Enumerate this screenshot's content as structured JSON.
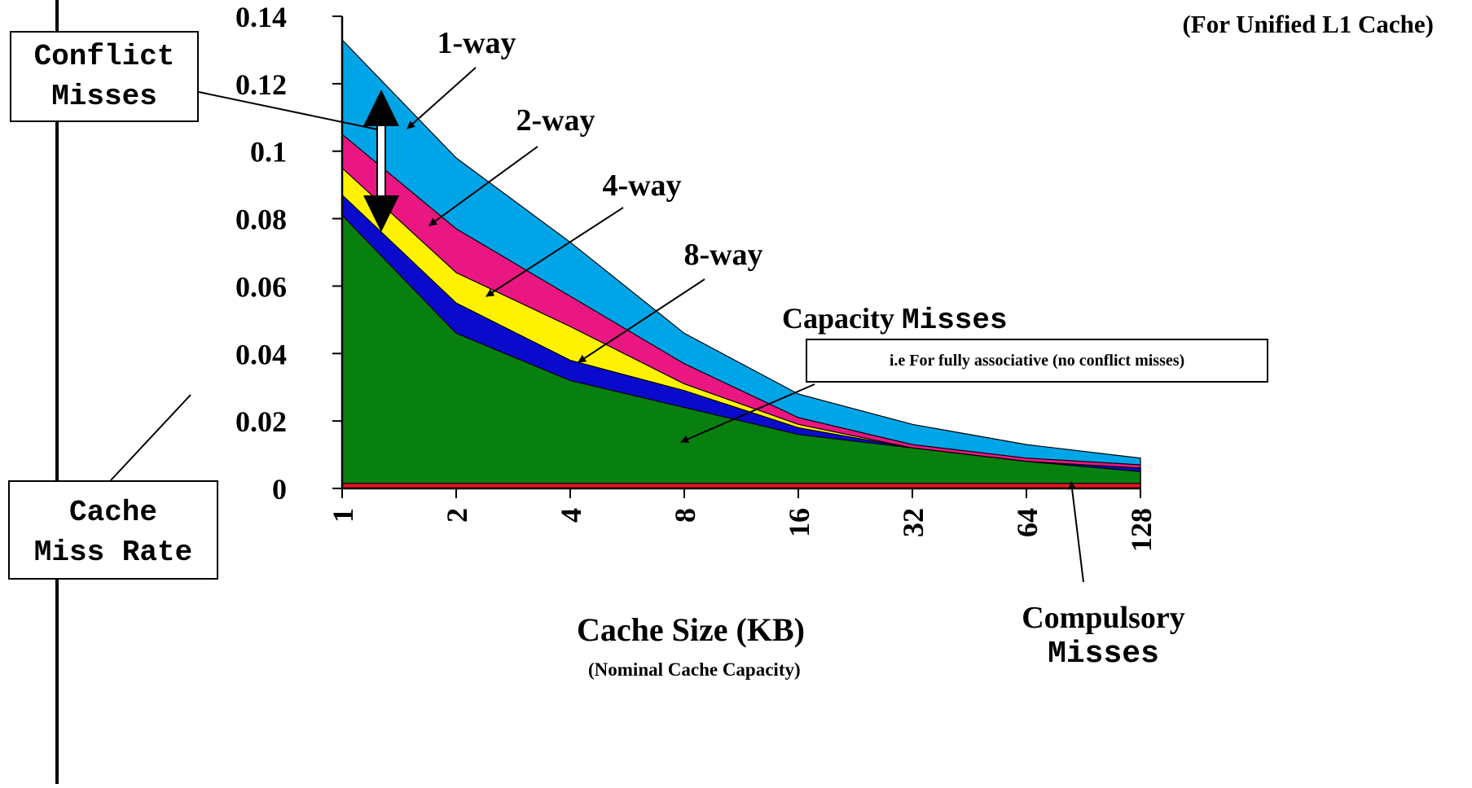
{
  "chart_data": {
    "type": "area",
    "subtitle": "(For Unified L1 Cache)",
    "xlabel": "Cache Size (KB)",
    "xlabel_sub": "(Nominal Cache Capacity)",
    "ylabel": "Cache Miss Rate",
    "categories": [
      "1",
      "2",
      "4",
      "8",
      "16",
      "32",
      "64",
      "128"
    ],
    "yticks": [
      "0",
      "0.02",
      "0.04",
      "0.06",
      "0.08",
      "0.1",
      "0.12",
      "0.14"
    ],
    "ylim": [
      0,
      0.14
    ],
    "grid": false,
    "series": [
      {
        "name": "1-way",
        "color": "#00a5e8",
        "values": [
          0.133,
          0.098,
          0.073,
          0.046,
          0.028,
          0.019,
          0.013,
          0.009
        ]
      },
      {
        "name": "2-way",
        "color": "#ea1681",
        "values": [
          0.105,
          0.077,
          0.057,
          0.037,
          0.021,
          0.013,
          0.009,
          0.007
        ]
      },
      {
        "name": "4-way",
        "color": "#fff200",
        "values": [
          0.095,
          0.064,
          0.048,
          0.031,
          0.019,
          0.012,
          0.008,
          0.006
        ]
      },
      {
        "name": "8-way",
        "color": "#0a0acd",
        "values": [
          0.087,
          0.055,
          0.038,
          0.029,
          0.018,
          0.012,
          0.008,
          0.006
        ]
      },
      {
        "name": "Capacity Misses",
        "color": "#07800f",
        "values": [
          0.081,
          0.046,
          0.032,
          0.024,
          0.016,
          0.012,
          0.008,
          0.005
        ]
      },
      {
        "name": "Compulsory Misses",
        "color": "#e2161e",
        "values": [
          0.0015,
          0.0015,
          0.0015,
          0.0015,
          0.0015,
          0.0015,
          0.0015,
          0.0015
        ]
      }
    ]
  },
  "annotations": {
    "conflict_line1": "Conflict",
    "conflict_line2": "Misses",
    "miss_rate_line1": "Cache",
    "miss_rate_line2": "Miss Rate",
    "capacity_word": "Capacity",
    "capacity_mono": "Misses",
    "capacity_note": "i.e For fully associative (no conflict misses)",
    "compulsory_line1": "Compulsory",
    "compulsory_line2": "Misses"
  }
}
